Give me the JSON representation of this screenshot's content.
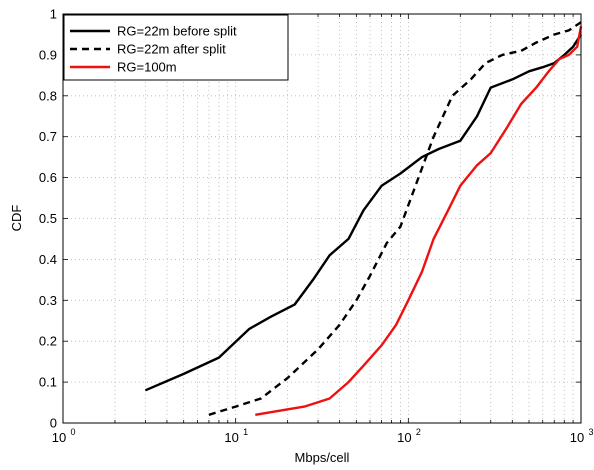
{
  "chart_data": {
    "type": "line",
    "xlabel": "Mbps/cell",
    "ylabel": "CDF",
    "xscale": "log",
    "xlim": [
      1,
      1000
    ],
    "ylim": [
      0,
      1
    ],
    "x_ticks": [
      1,
      10,
      100,
      1000
    ],
    "x_tick_labels": [
      {
        "base": "10",
        "exp": "0"
      },
      {
        "base": "10",
        "exp": "1"
      },
      {
        "base": "10",
        "exp": "2"
      },
      {
        "base": "10",
        "exp": "3"
      }
    ],
    "y_ticks": [
      0,
      0.1,
      0.2,
      0.3,
      0.4,
      0.5,
      0.6,
      0.7,
      0.8,
      0.9,
      1
    ],
    "y_tick_labels": [
      "0",
      "0.1",
      "0.2",
      "0.3",
      "0.4",
      "0.5",
      "0.6",
      "0.7",
      "0.8",
      "0.9",
      "1"
    ],
    "grid": true,
    "legend_position": "top-left",
    "series": [
      {
        "name": "RG=22m before split",
        "color": "#000000",
        "style": "solid",
        "x": [
          3,
          5,
          8,
          12,
          16,
          22,
          28,
          35,
          45,
          55,
          70,
          90,
          120,
          150,
          200,
          250,
          300,
          400,
          500,
          600,
          700,
          800,
          900,
          1000
        ],
        "y": [
          0.08,
          0.12,
          0.16,
          0.23,
          0.26,
          0.29,
          0.35,
          0.41,
          0.45,
          0.52,
          0.58,
          0.61,
          0.65,
          0.67,
          0.69,
          0.75,
          0.82,
          0.84,
          0.86,
          0.87,
          0.88,
          0.9,
          0.92,
          0.95
        ]
      },
      {
        "name": "RG=22m after split",
        "color": "#000000",
        "style": "dashed",
        "x": [
          7,
          10,
          14,
          20,
          30,
          40,
          50,
          60,
          75,
          90,
          110,
          140,
          180,
          230,
          280,
          350,
          450,
          550,
          700,
          850,
          1000
        ],
        "y": [
          0.02,
          0.04,
          0.06,
          0.11,
          0.18,
          0.24,
          0.3,
          0.36,
          0.44,
          0.48,
          0.58,
          0.7,
          0.8,
          0.84,
          0.88,
          0.9,
          0.91,
          0.93,
          0.95,
          0.96,
          0.98
        ]
      },
      {
        "name": "RG=100m",
        "color": "#ee1111",
        "style": "solid",
        "x": [
          13,
          18,
          25,
          35,
          45,
          55,
          70,
          85,
          100,
          120,
          140,
          170,
          200,
          250,
          300,
          370,
          450,
          550,
          650,
          750,
          850,
          950,
          1000
        ],
        "y": [
          0.02,
          0.03,
          0.04,
          0.06,
          0.1,
          0.14,
          0.19,
          0.24,
          0.3,
          0.37,
          0.45,
          0.52,
          0.58,
          0.63,
          0.66,
          0.72,
          0.78,
          0.82,
          0.86,
          0.89,
          0.9,
          0.92,
          0.97
        ]
      }
    ]
  }
}
